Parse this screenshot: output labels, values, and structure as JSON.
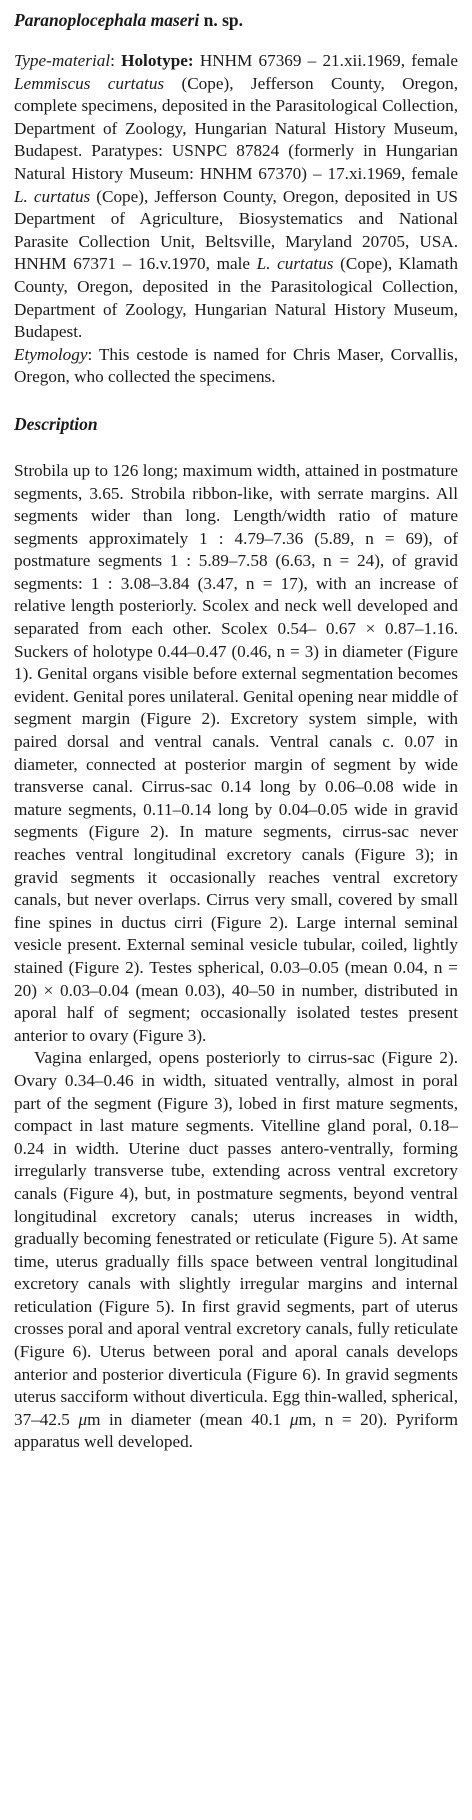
{
  "title": {
    "genus": "Paranoplocephala maseri",
    "suffix": " n. sp."
  },
  "type_material": {
    "label": "Type-material",
    "colon": ": ",
    "holotype_label": "Holotype:",
    "t1": " HNHM 67369 – 21.xii.1969, female ",
    "host1": "Lemmiscus curtatus",
    "t2": " (Cope), Jefferson County, Oregon, complete specimens, deposited in the Parasitological Collection, Department of Zoology, Hungarian Natural History Museum, Budapest. Paratypes: USNPC 87824 (formerly in Hungarian Natural History Museum: HNHM 67370) – 17.xi.1969, female ",
    "host2": "L. curtatus",
    "t3": " (Cope), Jefferson County, Oregon, deposited in US Department of Agriculture, Biosystematics and National Parasite Collection Unit, Beltsville, Maryland 20705, USA. HNHM 67371 – 16.v.1970, male ",
    "host3": "L. curtatus",
    "t4": " (Cope), Klamath County, Oregon, deposited in the Parasitological Collection, Department of Zoology, Hungarian Natural History Museum, Budapest."
  },
  "etymology": {
    "label": "Etymology",
    "colon": ": ",
    "text": "This cestode is named for Chris Maser, Corvallis, Oregon, who collected the specimens."
  },
  "description_heading": "Description",
  "description_p1": "Strobila up to 126 long; maximum width, attained in postmature segments, 3.65. Strobila ribbon-like, with serrate margins. All segments wider than long. Length/width ratio of mature segments approximately 1 : 4.79–7.36 (5.89, n = 69), of postmature segments 1 : 5.89–7.58 (6.63, n = 24), of gravid segments: 1 : 3.08–3.84 (3.47, n = 17), with an increase of relative length posteriorly. Scolex and neck well developed and separated from each other. Scolex 0.54– 0.67 × 0.87–1.16. Suckers of holotype 0.44–0.47 (0.46, n = 3) in diameter (Figure 1). Genital organs visible before external segmentation becomes evident. Genital pores unilateral. Genital opening near middle of segment margin (Figure 2). Excretory system simple, with paired dorsal and ventral canals. Ventral canals c. 0.07 in diameter, connected at posterior margin of segment by wide transverse canal. Cirrus-sac 0.14 long by 0.06–0.08 wide in mature segments, 0.11–0.14 long by 0.04–0.05 wide in gravid segments (Figure 2). In mature segments, cirrus-sac never reaches ventral longitudinal excretory canals (Figure 3); in gravid segments it occasionally reaches ventral excretory canals, but never overlaps. Cirrus very small, covered by small fine spines in ductus cirri (Figure 2). Large internal seminal vesicle present. External seminal vesicle tubular, coiled, lightly stained (Figure 2). Testes spherical, 0.03–0.05 (mean 0.04, n = 20) × 0.03–0.04 (mean 0.03), 40–50 in number, distributed in aporal half of segment; occasionally isolated testes present anterior to ovary (Figure 3).",
  "description_p2": {
    "t1": "Vagina enlarged, opens posteriorly to cirrus-sac (Figure 2). Ovary 0.34–0.46 in width, situated ventrally, almost in poral part of the segment (Figure 3), lobed in first mature segments, compact in last mature segments. Vitelline gland poral, 0.18–0.24 in width. Uterine duct passes antero-ventrally, forming irregularly transverse tube, extending across ventral excretory canals (Figure 4), but, in postmature segments, beyond ventral longitudinal excretory canals; uterus increases in width, gradually becoming fenestrated or reticulate (Figure 5). At same time, uterus gradually fills space between ventral longitudinal excretory canals with slightly irregular margins and internal reticulation (Figure 5). In first gravid segments, part of uterus crosses poral and aporal ventral excretory canals, fully reticulate (Figure 6). Uterus between poral and aporal canals develops anterior and posterior diverticula (Figure 6). In gravid segments uterus sacciform without diverticula. Egg thin-walled, spherical, 37–42.5 ",
    "mu1": "μ",
    "t2": "m in diameter (mean 40.1 ",
    "mu2": "μ",
    "t3": "m, n = 20). Pyriform apparatus well developed."
  }
}
